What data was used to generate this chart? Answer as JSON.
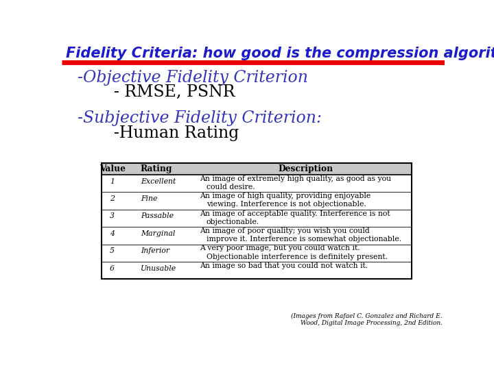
{
  "title": "Fidelity Criteria: how good is the compression algorithm",
  "title_color": "#1c1ccc",
  "title_fontsize": 15,
  "bg_color": "#ffffff",
  "red_line_color": "#ee0000",
  "bullet1_main": "-Objective Fidelity Criterion",
  "bullet1_sub": "    - RMSE, PSNR",
  "bullet2_main": "-Subjective Fidelity Criterion:",
  "bullet2_sub": "    -Human Rating",
  "bullet_color": "#3333bb",
  "bullet_sub_color": "#000000",
  "bullet_main_fontsize": 17,
  "bullet_sub_fontsize": 17,
  "table_header": [
    "Value",
    "Rating",
    "Description"
  ],
  "table_data": [
    [
      "1",
      "Excellent",
      "An image of extremely high quality, as good as you",
      "could desire."
    ],
    [
      "2",
      "Fine",
      "An image of high quality, providing enjoyable",
      "viewing. Interference is not objectionable."
    ],
    [
      "3",
      "Passable",
      "An image of acceptable quality. Interference is not",
      "objectionable."
    ],
    [
      "4",
      "Marginal",
      "An image of poor quality; you wish you could",
      "improve it. Interference is somewhat objectionable."
    ],
    [
      "5",
      "Inferior",
      "A very poor image, but you could watch it.",
      "Objectionable interference is definitely present."
    ],
    [
      "6",
      "Unusable",
      "An image so bad that you could not watch it.",
      ""
    ]
  ],
  "table_header_bg": "#c8c8c8",
  "table_fontsize": 7.8,
  "footer_text": "(Images from Rafael C. Gonzalez and Richard E.\nWood, Digital Image Processing, 2nd Edition.",
  "footer_fontsize": 6.5
}
